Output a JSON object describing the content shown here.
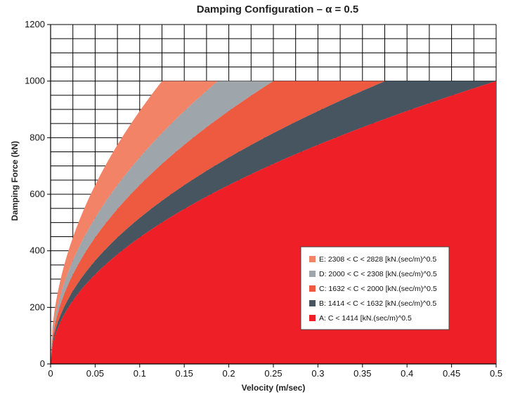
{
  "chart_data": {
    "type": "area",
    "title": "Damping Configuration – α = 0.5",
    "xlabel": "Velocity (m/sec)",
    "ylabel": "Damping Force (kN)",
    "xlim": [
      0,
      0.5
    ],
    "ylim": [
      0,
      1200
    ],
    "x_ticks": [
      "0",
      "0.05",
      "0.1",
      "0.15",
      "0.2",
      "0.25",
      "0.3",
      "0.35",
      "0.4",
      "0.45",
      "0.5"
    ],
    "y_ticks": [
      "0",
      "200",
      "400",
      "600",
      "800",
      "1000",
      "1200"
    ],
    "grid": true,
    "grid_region_above_y": 1000,
    "force_cap": 1000,
    "alpha": 0.5,
    "legend_position": "lower-right",
    "series": [
      {
        "name": "E:  2308 < C < 2828 [kN.(sec/m)^0.5",
        "c_low": 2308,
        "c_high": 2828,
        "color": "#f38366"
      },
      {
        "name": "D:  2000 < C < 2308 [kN.(sec/m)^0.5",
        "c_low": 2000,
        "c_high": 2308,
        "color": "#9ea5ab"
      },
      {
        "name": "C:  1632 < C < 2000 [kN.(sec/m)^0.5",
        "c_low": 1632,
        "c_high": 2000,
        "color": "#ee5a3f"
      },
      {
        "name": "B:  1414 < C < 1632 [kN.(sec/m)^0.5",
        "c_low": 1414,
        "c_high": 1632,
        "color": "#465560"
      },
      {
        "name": "A:  C < 1414 [kN.(sec/m)^0.5",
        "c_low": 0,
        "c_high": 1414,
        "color": "#ee1f26"
      }
    ]
  }
}
